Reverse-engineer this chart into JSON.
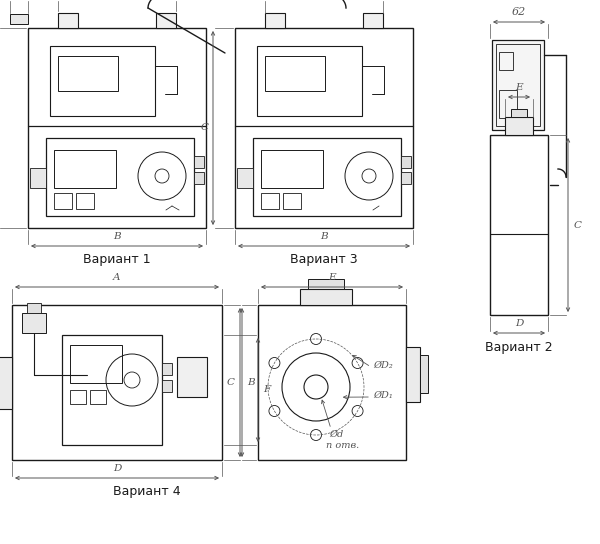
{
  "bg_color": "#ffffff",
  "lc": "#1a1a1a",
  "dc": "#555555",
  "fig_w": 6.0,
  "fig_h": 5.44,
  "dpi": 100,
  "v1_label": "Вариант 1",
  "v2_label": "Вариант 2",
  "v3_label": "Вариант 3",
  "v4_label": "Вариант 4",
  "n_otv": "n отв."
}
